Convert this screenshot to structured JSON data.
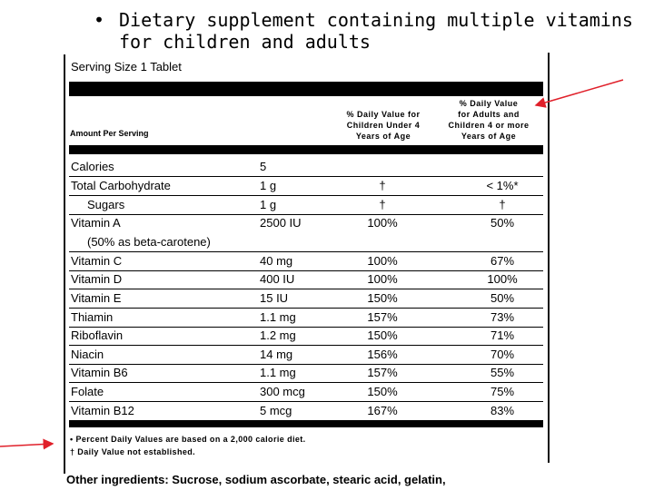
{
  "bullet": {
    "symbol": "•",
    "line1": "Dietary supplement containing multiple vitamins",
    "line2": "for children and adults"
  },
  "label": {
    "serving_size": "Serving Size 1 Tablet",
    "amount_per_serving": "Amount Per Serving",
    "col_children": [
      "% Daily Value for",
      "Children Under 4",
      "Years of Age"
    ],
    "col_adults": [
      "% Daily Value",
      "for Adults and",
      "Children 4 or more",
      "Years of Age"
    ],
    "rows": [
      {
        "name": "Calories",
        "amount": "5",
        "child": "",
        "adult": ""
      },
      {
        "name": "Total Carbohydrate",
        "amount": "1 g",
        "child": "†",
        "adult": "< 1%*"
      },
      {
        "name": "Sugars",
        "amount": "1 g",
        "child": "†",
        "adult": "†"
      },
      {
        "name": "Vitamin A",
        "amount": "2500 IU",
        "child": "100%",
        "adult": "50%"
      },
      {
        "name": "(50% as beta-carotene)",
        "amount": "",
        "child": "",
        "adult": ""
      },
      {
        "name": "Vitamin C",
        "amount": "40 mg",
        "child": "100%",
        "adult": "67%"
      },
      {
        "name": "Vitamin D",
        "amount": "400 IU",
        "child": "100%",
        "adult": "100%"
      },
      {
        "name": "Vitamin E",
        "amount": "15 IU",
        "child": "150%",
        "adult": "50%"
      },
      {
        "name": "Thiamin",
        "amount": "1.1 mg",
        "child": "157%",
        "adult": "73%"
      },
      {
        "name": "Riboflavin",
        "amount": "1.2 mg",
        "child": "150%",
        "adult": "71%"
      },
      {
        "name": "Niacin",
        "amount": "14 mg",
        "child": "156%",
        "adult": "70%"
      },
      {
        "name": "Vitamin B6",
        "amount": "1.1 mg",
        "child": "157%",
        "adult": "55%"
      },
      {
        "name": "Folate",
        "amount": "300 mcg",
        "child": "150%",
        "adult": "75%"
      },
      {
        "name": "Vitamin B12",
        "amount": "5 mcg",
        "child": "167%",
        "adult": "83%"
      }
    ],
    "footnote1": "• Percent Daily Values are based on a 2,000 calorie diet.",
    "footnote2": "† Daily Value not established.",
    "other_ingredients": "Other ingredients: Sucrose, sodium ascorbate, stearic acid, gelatin,"
  },
  "colors": {
    "arrow": "#e0202a",
    "ink": "#000000"
  }
}
